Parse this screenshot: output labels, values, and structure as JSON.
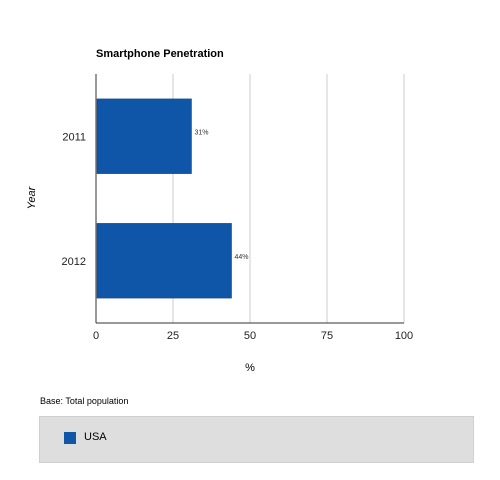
{
  "chart_data": {
    "type": "bar",
    "orientation": "horizontal",
    "title": "Smartphone Penetration",
    "xlabel": "%",
    "ylabel": "Year",
    "categories": [
      "2011",
      "2012"
    ],
    "series": [
      {
        "name": "USA",
        "values": [
          31,
          44
        ],
        "data_labels": [
          "31%",
          "44%"
        ],
        "color": "#0f56a8"
      }
    ],
    "xlim": [
      0,
      100
    ],
    "xticks": [
      0,
      25,
      50,
      75,
      100
    ],
    "grid": true,
    "legend_position": "bottom"
  },
  "base_note": "Base: Total population"
}
